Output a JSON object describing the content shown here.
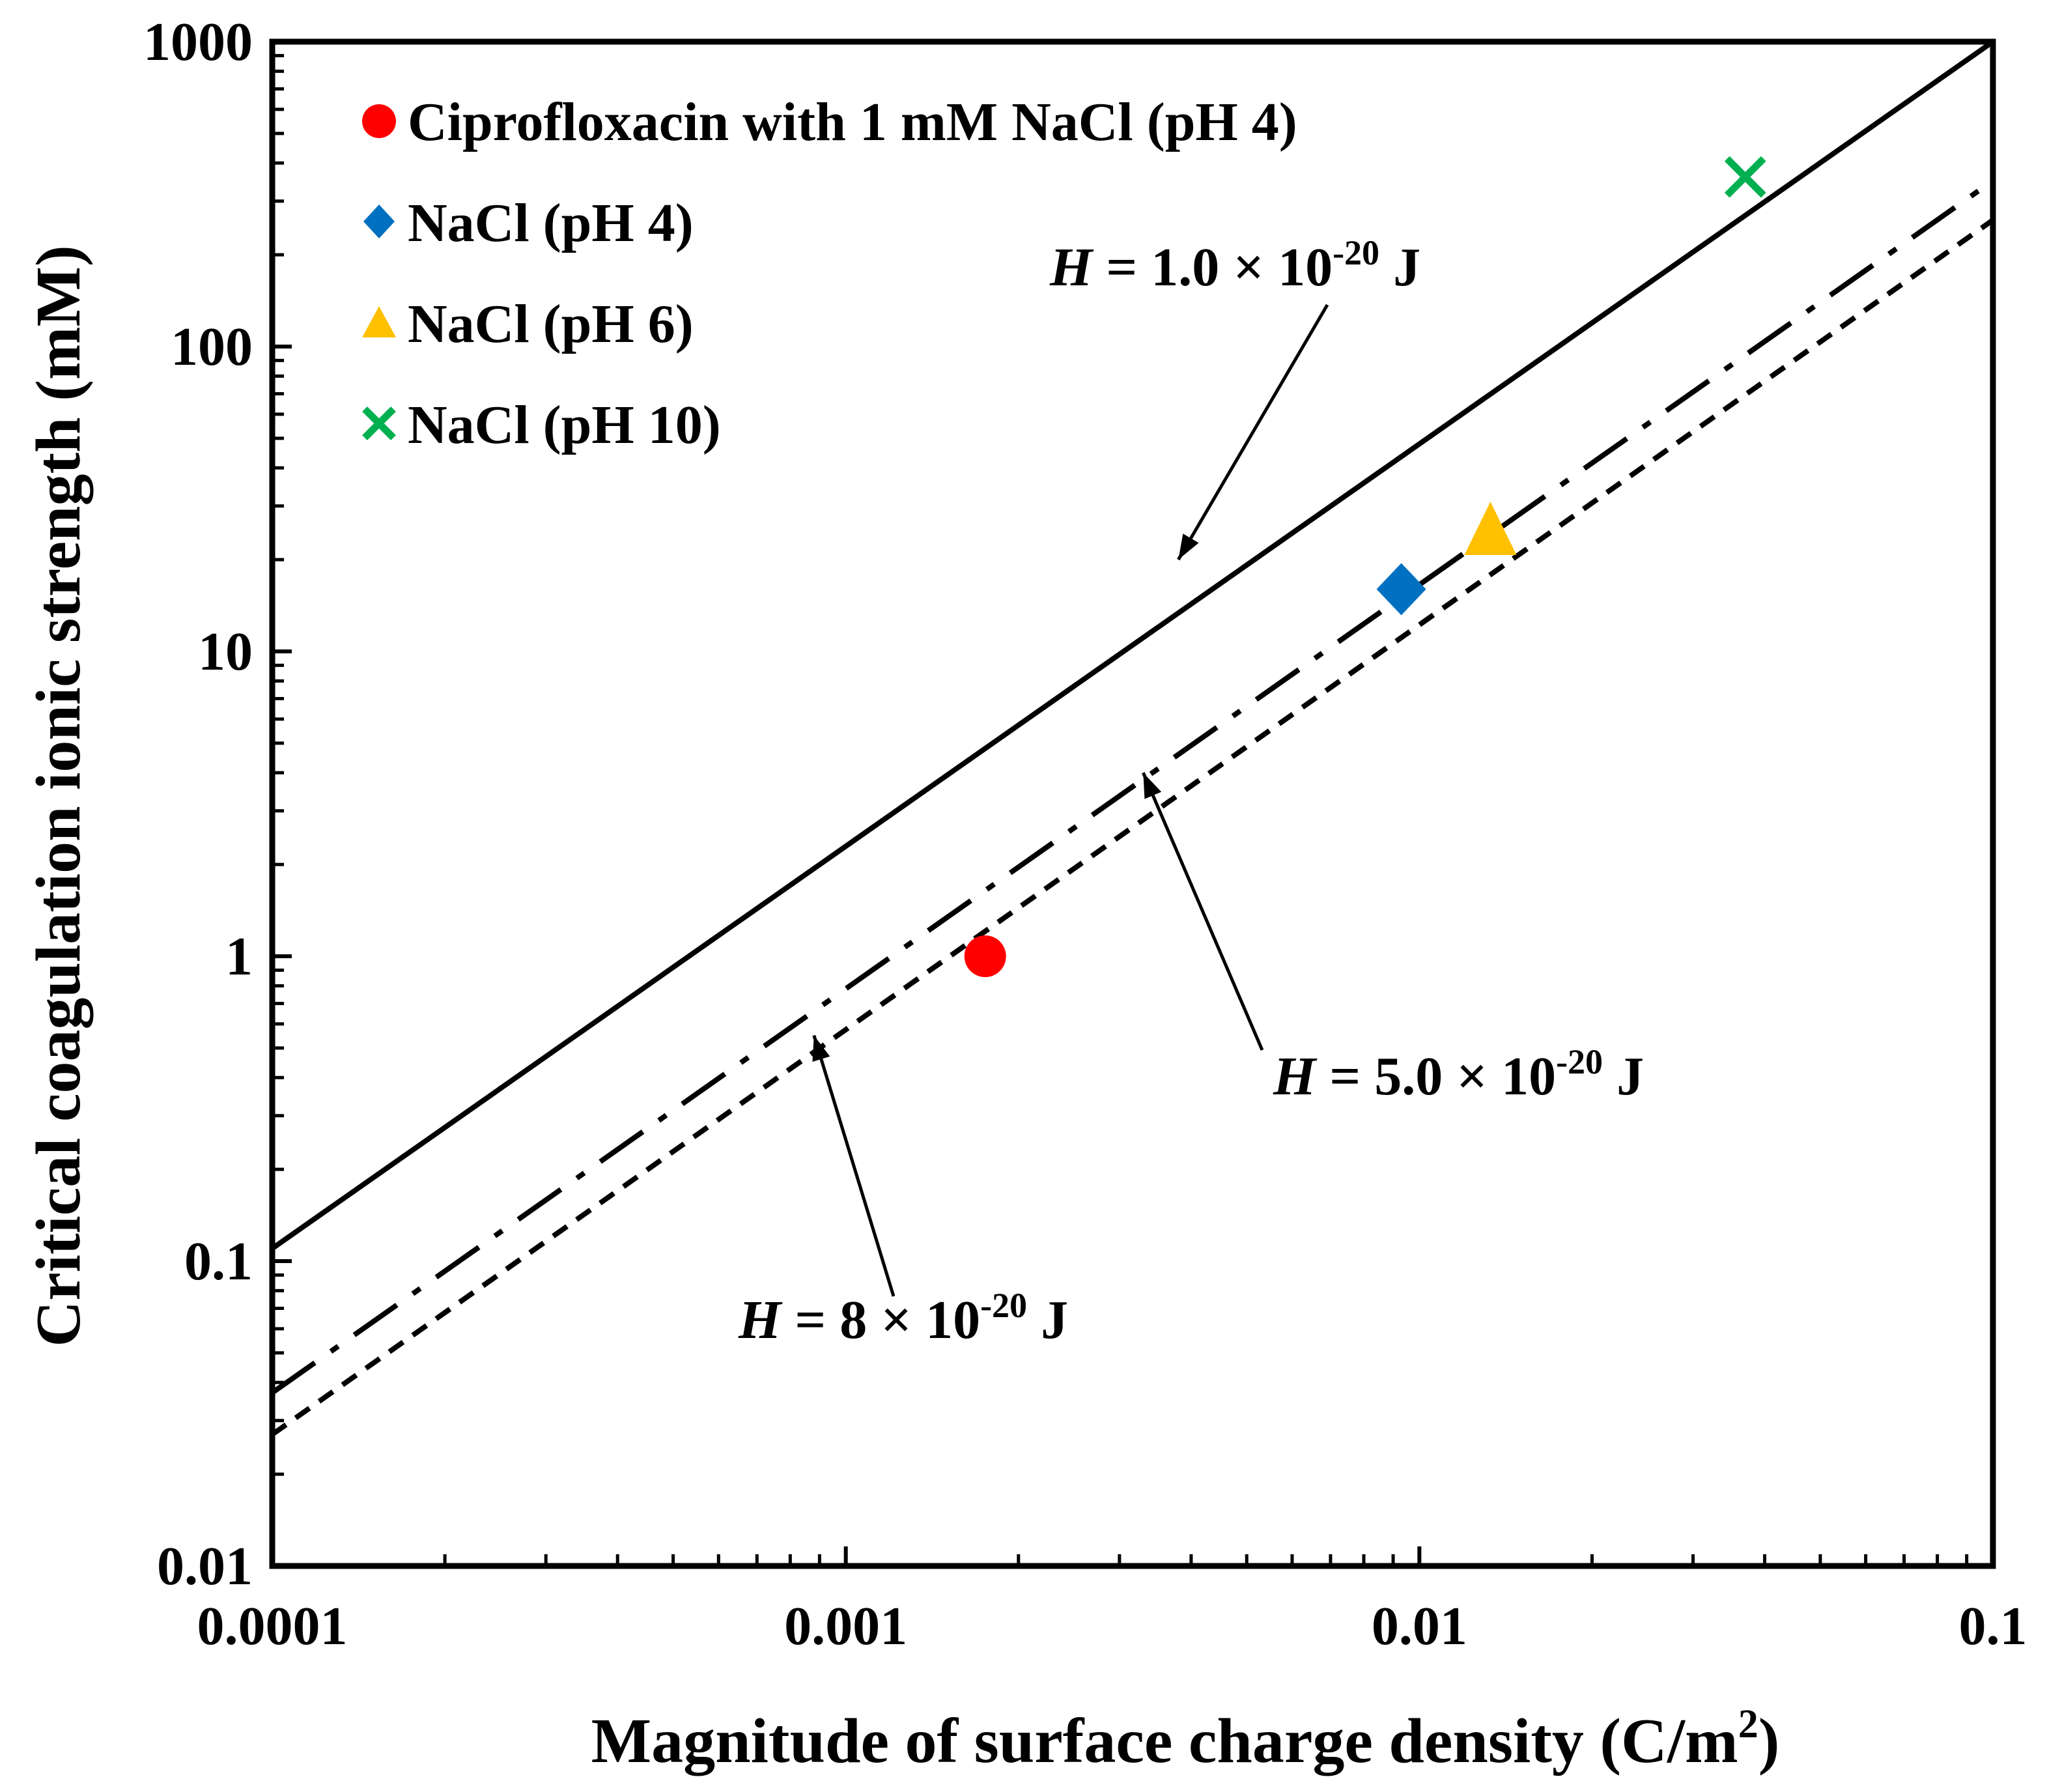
{
  "chart_data": {
    "type": "scatter",
    "xlabel": "Magnitude of surface charge density (C/m",
    "xlabel_sup": "2",
    "xlabel_end": ")",
    "ylabel": "Critical coagulation ionic strength (mM)",
    "xscale": "log",
    "yscale": "log",
    "xlim": [
      0.0001,
      0.1
    ],
    "ylim": [
      0.01,
      1000
    ],
    "x_tick_labels": [
      "0.0001",
      "0.001",
      "0.01",
      "0.1"
    ],
    "y_tick_labels": [
      "0.01",
      "0.1",
      "1",
      "10",
      "100",
      "1000"
    ],
    "grid": false,
    "legend_position": "top-left",
    "series": [
      {
        "name": "Ciprofloxacin with 1 mM NaCl (pH 4)",
        "marker": "circle",
        "color": "#ff0000",
        "x": [
          0.00175
        ],
        "y": [
          1.0
        ]
      },
      {
        "name": "NaCl (pH 4)",
        "marker": "diamond",
        "color": "#0070c0",
        "x": [
          0.0093
        ],
        "y": [
          16
        ]
      },
      {
        "name": "NaCl (pH 6)",
        "marker": "triangle",
        "color": "#ffc000",
        "x": [
          0.0133
        ],
        "y": [
          24
        ]
      },
      {
        "name": "NaCl (pH 10)",
        "marker": "x",
        "color": "#00b050",
        "x": [
          0.037
        ],
        "y": [
          360
        ]
      }
    ],
    "lines": [
      {
        "name": "H = 1.0 × 10-20 J",
        "style": "solid",
        "x": [
          0.0001,
          0.1
        ],
        "y": [
          0.11,
          1000
        ]
      },
      {
        "name": "H = 5.0 × 10-20 J",
        "style": "dash-dot",
        "x": [
          0.0001,
          0.1
        ],
        "y": [
          0.037,
          350
        ]
      },
      {
        "name": "H = 8 × 10-20 J",
        "style": "dashed",
        "x": [
          0.0001,
          0.1
        ],
        "y": [
          0.027,
          260
        ]
      }
    ],
    "annotations": [
      {
        "italic": "H",
        "prefix": " = 1.0 × 10",
        "exponent": "-20",
        "suffix": " J",
        "arrow_to": {
          "x": 0.0038,
          "y": 20
        }
      },
      {
        "italic": "H",
        "prefix": " = 5.0 × 10",
        "exponent": "-20",
        "suffix": " J",
        "arrow_to": {
          "x": 0.0033,
          "y": 4
        }
      },
      {
        "italic": "H",
        "prefix": " = 8 × 10",
        "exponent": "-20",
        "suffix": " J",
        "arrow_to": {
          "x": 0.00088,
          "y": 0.55
        }
      }
    ]
  }
}
